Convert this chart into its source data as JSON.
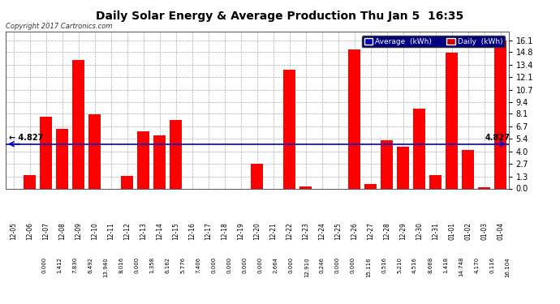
{
  "title": "Daily Solar Energy & Average Production Thu Jan 5  16:35",
  "copyright": "Copyright 2017 Cartronics.com",
  "categories": [
    "12-05",
    "12-06",
    "12-07",
    "12-08",
    "12-09",
    "12-10",
    "12-11",
    "12-12",
    "12-13",
    "12-14",
    "12-15",
    "12-16",
    "12-17",
    "12-18",
    "12-19",
    "12-20",
    "12-21",
    "12-22",
    "12-23",
    "12-24",
    "12-25",
    "12-26",
    "12-27",
    "12-28",
    "12-29",
    "12-30",
    "12-31",
    "01-01",
    "01-02",
    "01-03",
    "01-04"
  ],
  "values": [
    0.0,
    1.412,
    7.83,
    6.492,
    13.94,
    8.016,
    0.0,
    1.358,
    6.162,
    5.776,
    7.406,
    0.0,
    0.0,
    0.0,
    0.0,
    2.664,
    0.0,
    12.91,
    0.246,
    0.0,
    0.0,
    15.116,
    0.516,
    5.21,
    4.516,
    8.668,
    1.418,
    14.748,
    4.17,
    0.116,
    16.104
  ],
  "average": 4.827,
  "bar_color": "#ff0000",
  "average_line_color": "#0000cc",
  "background_color": "#ffffff",
  "plot_bg_color": "#ffffff",
  "grid_color": "#888888",
  "title_color": "#000000",
  "ylim": [
    0.0,
    17.0
  ],
  "yticks": [
    0.0,
    1.3,
    2.7,
    4.0,
    5.4,
    6.7,
    8.1,
    9.4,
    10.7,
    12.1,
    13.4,
    14.8,
    16.1
  ],
  "legend_avg_bg": "#0000aa",
  "legend_daily_bg": "#cc0000",
  "avg_label": "Average  (kWh)",
  "daily_label": "Daily  (kWh)"
}
